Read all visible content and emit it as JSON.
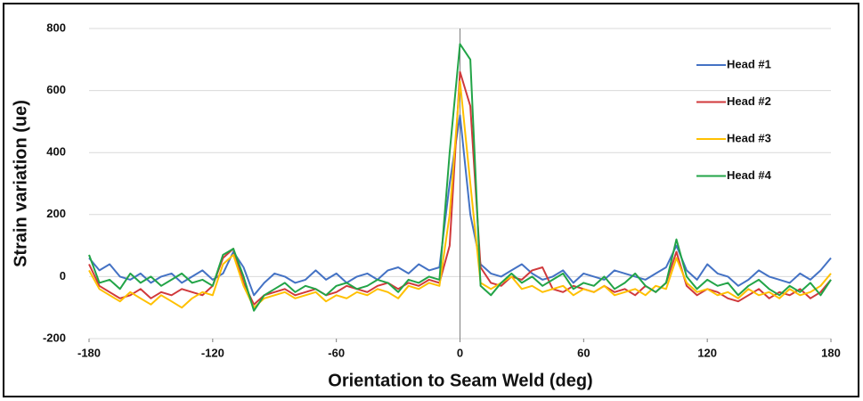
{
  "chart_data": {
    "type": "line",
    "xlabel": "Orientation  to Seam Weld (deg)",
    "ylabel": "Strain variation (ue)",
    "x": [
      -180,
      -175,
      -170,
      -165,
      -160,
      -155,
      -150,
      -145,
      -140,
      -135,
      -130,
      -125,
      -120,
      -115,
      -110,
      -105,
      -100,
      -95,
      -90,
      -85,
      -80,
      -75,
      -70,
      -65,
      -60,
      -55,
      -50,
      -45,
      -40,
      -35,
      -30,
      -25,
      -20,
      -15,
      -10,
      -5,
      0,
      5,
      10,
      15,
      20,
      25,
      30,
      35,
      40,
      45,
      50,
      55,
      60,
      65,
      70,
      75,
      80,
      85,
      90,
      95,
      100,
      105,
      110,
      115,
      120,
      125,
      130,
      135,
      140,
      145,
      150,
      155,
      160,
      165,
      170,
      175,
      180
    ],
    "series": [
      {
        "name": "Head #1",
        "color": "#4472c4",
        "values": [
          60,
          20,
          40,
          0,
          -10,
          10,
          -20,
          0,
          10,
          -20,
          0,
          20,
          -10,
          10,
          80,
          30,
          -60,
          -20,
          10,
          0,
          -20,
          -10,
          20,
          -10,
          10,
          -20,
          0,
          10,
          -10,
          20,
          30,
          10,
          40,
          20,
          30,
          300,
          520,
          200,
          40,
          10,
          0,
          20,
          40,
          10,
          -10,
          0,
          20,
          -20,
          10,
          0,
          -10,
          20,
          10,
          0,
          -10,
          10,
          30,
          100,
          20,
          -10,
          40,
          10,
          0,
          -30,
          -10,
          20,
          0,
          -10,
          -20,
          10,
          -10,
          20,
          60
        ]
      },
      {
        "name": "Head #2",
        "color": "#d0393b",
        "values": [
          40,
          -30,
          -50,
          -70,
          -60,
          -40,
          -70,
          -50,
          -60,
          -40,
          -50,
          -60,
          -30,
          60,
          90,
          -20,
          -90,
          -60,
          -50,
          -40,
          -60,
          -50,
          -40,
          -60,
          -50,
          -30,
          -40,
          -50,
          -30,
          -20,
          -40,
          -20,
          -30,
          -10,
          -20,
          100,
          660,
          550,
          30,
          -20,
          -30,
          0,
          -10,
          20,
          30,
          -40,
          -50,
          -30,
          -40,
          -50,
          -30,
          -50,
          -40,
          -60,
          -30,
          -50,
          -20,
          80,
          -30,
          -60,
          -40,
          -50,
          -70,
          -80,
          -60,
          -40,
          -70,
          -50,
          -60,
          -40,
          -70,
          -50,
          -10
        ]
      },
      {
        "name": "Head #3",
        "color": "#ffc000",
        "values": [
          20,
          -40,
          -60,
          -80,
          -50,
          -70,
          -90,
          -60,
          -80,
          -100,
          -70,
          -50,
          -60,
          40,
          70,
          -30,
          -100,
          -70,
          -60,
          -50,
          -70,
          -60,
          -50,
          -80,
          -60,
          -70,
          -50,
          -60,
          -40,
          -50,
          -70,
          -30,
          -40,
          -20,
          -30,
          200,
          630,
          300,
          -20,
          -40,
          -20,
          0,
          -40,
          -30,
          -50,
          -40,
          -30,
          -60,
          -40,
          -50,
          -30,
          -60,
          -50,
          -40,
          -60,
          -30,
          -40,
          60,
          -20,
          -50,
          -40,
          -60,
          -50,
          -70,
          -40,
          -60,
          -50,
          -70,
          -40,
          -60,
          -50,
          -30,
          10
        ]
      },
      {
        "name": "Head #4",
        "color": "#22a447",
        "values": [
          70,
          -20,
          -10,
          -40,
          10,
          -20,
          0,
          -30,
          -10,
          10,
          -20,
          -10,
          -30,
          70,
          90,
          0,
          -110,
          -60,
          -40,
          -20,
          -50,
          -30,
          -40,
          -60,
          -30,
          -20,
          -40,
          -30,
          -10,
          -20,
          -50,
          -10,
          -20,
          0,
          -10,
          400,
          750,
          700,
          -30,
          -60,
          -20,
          10,
          -20,
          0,
          -30,
          -10,
          10,
          -40,
          -20,
          -30,
          0,
          -40,
          -20,
          10,
          -30,
          -50,
          -20,
          120,
          0,
          -40,
          -10,
          -30,
          -20,
          -60,
          -30,
          -10,
          -40,
          -60,
          -30,
          -50,
          -20,
          -60,
          -10
        ]
      }
    ],
    "xlim": [
      -180,
      180
    ],
    "xticks": [
      -180,
      -120,
      -60,
      0,
      60,
      120,
      180
    ],
    "ylim": [
      -200,
      800
    ],
    "yticks": [
      -200,
      0,
      200,
      400,
      600,
      800
    ],
    "grid": true,
    "legend": "upper right"
  }
}
